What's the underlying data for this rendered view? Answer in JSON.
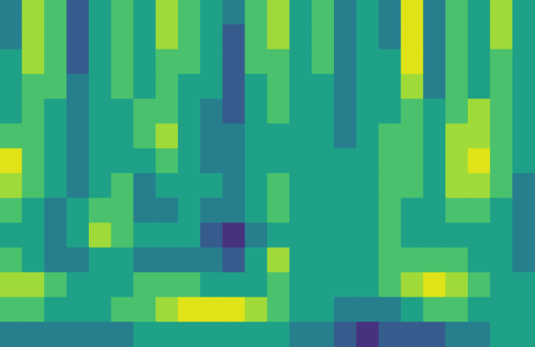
{
  "chart_data": {
    "type": "heatmap",
    "tick_labels": false,
    "grid": false,
    "zlim": [
      0,
      6
    ],
    "cells": [
      [
        2,
        5,
        4,
        1,
        3,
        4,
        3,
        5,
        4,
        3,
        2,
        4,
        5,
        3,
        4,
        2,
        3,
        2,
        6,
        2,
        4,
        3,
        5,
        3
      ],
      [
        2,
        5,
        4,
        1,
        3,
        4,
        3,
        5,
        4,
        3,
        1,
        4,
        5,
        3,
        4,
        2,
        3,
        2,
        6,
        2,
        4,
        3,
        5,
        3
      ],
      [
        3,
        5,
        4,
        1,
        3,
        4,
        3,
        4,
        4,
        3,
        1,
        4,
        4,
        3,
        4,
        2,
        3,
        3,
        6,
        2,
        4,
        3,
        4,
        3
      ],
      [
        3,
        4,
        4,
        2,
        3,
        4,
        3,
        4,
        3,
        3,
        1,
        3,
        4,
        3,
        3,
        2,
        3,
        3,
        5,
        2,
        4,
        3,
        4,
        3
      ],
      [
        3,
        4,
        3,
        2,
        3,
        3,
        4,
        4,
        3,
        2,
        1,
        3,
        4,
        3,
        3,
        2,
        3,
        3,
        4,
        3,
        4,
        5,
        4,
        3
      ],
      [
        4,
        4,
        3,
        2,
        3,
        3,
        4,
        5,
        3,
        2,
        2,
        3,
        3,
        3,
        3,
        2,
        3,
        4,
        4,
        3,
        5,
        5,
        4,
        3
      ],
      [
        6,
        4,
        3,
        2,
        3,
        3,
        3,
        4,
        3,
        2,
        2,
        3,
        3,
        3,
        3,
        3,
        3,
        4,
        4,
        3,
        5,
        6,
        4,
        3
      ],
      [
        5,
        4,
        3,
        2,
        3,
        4,
        2,
        3,
        3,
        3,
        2,
        3,
        4,
        3,
        3,
        3,
        3,
        4,
        4,
        3,
        5,
        5,
        4,
        2
      ],
      [
        4,
        3,
        2,
        3,
        4,
        4,
        2,
        2,
        3,
        2,
        2,
        3,
        4,
        3,
        3,
        3,
        3,
        4,
        3,
        3,
        4,
        4,
        3,
        2
      ],
      [
        3,
        3,
        2,
        3,
        5,
        4,
        3,
        3,
        3,
        1,
        0,
        2,
        3,
        3,
        3,
        3,
        3,
        4,
        3,
        3,
        3,
        3,
        3,
        2
      ],
      [
        4,
        3,
        2,
        2,
        3,
        3,
        2,
        2,
        2,
        2,
        1,
        3,
        5,
        3,
        3,
        3,
        3,
        4,
        4,
        4,
        4,
        3,
        3,
        2
      ],
      [
        5,
        5,
        4,
        3,
        3,
        3,
        4,
        4,
        4,
        3,
        3,
        3,
        4,
        3,
        3,
        3,
        3,
        4,
        5,
        6,
        5,
        4,
        3,
        3
      ],
      [
        4,
        4,
        3,
        3,
        3,
        4,
        4,
        5,
        6,
        6,
        6,
        5,
        4,
        3,
        3,
        2,
        2,
        2,
        3,
        4,
        4,
        3,
        3,
        3
      ],
      [
        2,
        2,
        2,
        2,
        2,
        2,
        3,
        3,
        3,
        3,
        3,
        3,
        3,
        2,
        2,
        1,
        0,
        1,
        1,
        1,
        2,
        2,
        3,
        3
      ]
    ]
  }
}
